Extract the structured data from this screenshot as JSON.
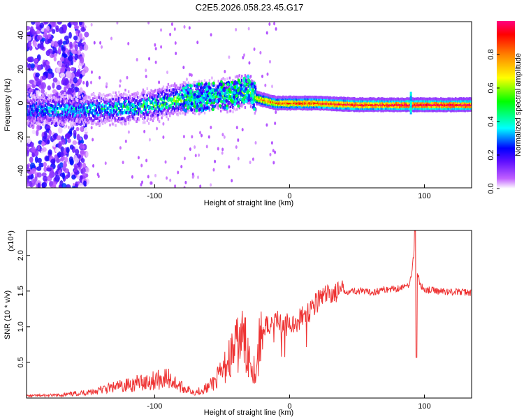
{
  "title": "C2E5.2026.058.23.45.G17",
  "chart_data": [
    {
      "type": "heatmap",
      "xlabel": "Height of straight line (km)",
      "ylabel": "Frequency (Hz)",
      "xlim": [
        -195,
        135
      ],
      "ylim": [
        -50,
        48
      ],
      "x_ticks": [
        "-100",
        "0",
        "100"
      ],
      "y_ticks": [
        "-40",
        "-20",
        "0",
        "20",
        "40"
      ],
      "colorbar": {
        "label": "Normalized spectral amplitude",
        "range": [
          0,
          1
        ],
        "ticks": [
          "0.0",
          "0.2",
          "0.4",
          "0.6",
          "0.8"
        ],
        "colors": [
          "#ffffff",
          "#c060ff",
          "#6010ff",
          "#0000ff",
          "#00ffff",
          "#00ff00",
          "#ffff00",
          "#ff8000",
          "#ff0000",
          "#ff0080"
        ]
      },
      "features": [
        {
          "name": "noise-region",
          "x_range": [
            -195,
            -160
          ],
          "f_range": [
            -50,
            48
          ],
          "amplitude": 0.1
        },
        {
          "name": "main-trace",
          "points": [
            [
              -195,
              -4
            ],
            [
              -150,
              -4
            ],
            [
              -120,
              -3
            ],
            [
              -100,
              -1
            ],
            [
              -85,
              2
            ],
            [
              -60,
              4
            ],
            [
              -40,
              5
            ],
            [
              -30,
              8
            ],
            [
              -25,
              3
            ],
            [
              -20,
              2
            ],
            [
              -10,
              0
            ],
            [
              0,
              0
            ],
            [
              20,
              0
            ],
            [
              50,
              -1
            ],
            [
              100,
              -1
            ],
            [
              135,
              -1
            ]
          ],
          "amplitude": [
            0.3,
            0.35,
            0.4,
            0.45,
            0.45,
            0.4,
            0.45,
            0.5,
            0.7,
            0.8,
            0.85,
            0.85,
            0.9,
            0.95,
            1.0,
            1.0
          ]
        },
        {
          "name": "spur",
          "x": 90,
          "f_range": [
            -6,
            6
          ],
          "amplitude": 0.3
        }
      ]
    },
    {
      "type": "line",
      "xlabel": "Height of straight line (km)",
      "ylabel": "SNR (10 * v/v)",
      "y_multiplier": "(x10⁴)",
      "xlim": [
        -195,
        135
      ],
      "ylim": [
        0,
        23500
      ],
      "x_ticks": [
        "-100",
        "0",
        "100"
      ],
      "y_ticks": [
        "0.5",
        "1.0",
        "1.5",
        "2.0"
      ],
      "color": "#ee3333",
      "series": [
        {
          "x": [
            -195,
            -170,
            -150,
            -130,
            -110,
            -100,
            -90,
            -80,
            -70,
            -60,
            -50,
            -45,
            -40,
            -35,
            -30,
            -25,
            -22,
            -20,
            -15,
            -10,
            -5,
            0,
            5,
            10,
            15,
            20,
            25,
            30,
            40,
            50,
            60,
            70,
            80,
            88,
            90,
            92,
            93,
            94,
            95,
            97,
            100,
            110,
            120,
            135
          ],
          "y": [
            300,
            400,
            800,
            1500,
            2200,
            2500,
            2800,
            1500,
            800,
            1500,
            3500,
            5500,
            7000,
            8500,
            6000,
            3500,
            8000,
            9500,
            10500,
            11000,
            10000,
            10500,
            10500,
            11500,
            12500,
            13500,
            14200,
            14600,
            15000,
            15000,
            14800,
            15200,
            15400,
            15700,
            17000,
            20000,
            22000,
            15000,
            17500,
            15800,
            15200,
            15000,
            14900,
            14800
          ]
        }
      ]
    }
  ]
}
